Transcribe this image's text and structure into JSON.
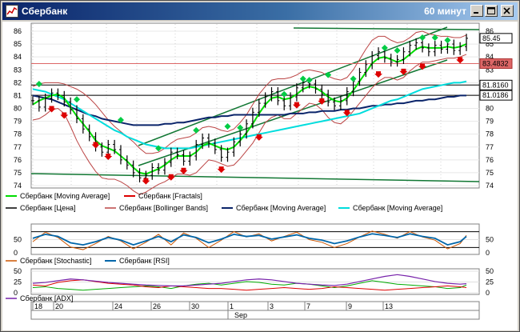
{
  "window": {
    "title": "Сбербанк",
    "period": "60 минут"
  },
  "colors": {
    "up_fractal": "#00cc44",
    "down_fractal": "#dd0000",
    "ma_fast": "#00dd00",
    "ma_slow": "#0a246a",
    "ma_mid": "#00dddd",
    "bollinger": "#bb4444",
    "price": "#000000",
    "channel": "#117733",
    "stochastic": "#cc5500",
    "rsi": "#0066aa",
    "adx": "#7722aa"
  },
  "chart_data": [
    {
      "type": "line",
      "name": "price",
      "ylim": [
        74,
        86
      ],
      "yticks": [
        74,
        75,
        76,
        77,
        78,
        79,
        80,
        81,
        82,
        83,
        84,
        85,
        86
      ],
      "x": [
        0,
        2,
        4,
        6,
        8,
        10,
        12,
        14,
        16,
        18,
        20,
        22,
        24,
        26,
        28,
        30,
        32,
        34,
        36,
        38,
        40,
        42,
        44,
        46,
        48,
        50,
        52,
        54,
        56,
        58,
        60,
        62,
        64,
        66,
        68,
        70,
        72,
        74,
        76,
        78,
        80,
        82,
        84,
        86,
        88,
        90,
        92,
        94,
        96,
        98,
        100,
        102,
        104,
        106,
        108,
        110,
        112,
        114,
        116,
        118,
        120,
        122,
        124,
        126,
        128,
        130,
        132,
        134,
        136,
        138
      ],
      "close": [
        80.6,
        80.1,
        80.8,
        81.2,
        81.0,
        80.5,
        79.9,
        79.2,
        78.4,
        77.8,
        77.0,
        76.6,
        77.2,
        76.8,
        76.0,
        75.6,
        75.0,
        74.6,
        74.8,
        75.4,
        75.2,
        75.8,
        76.6,
        76.4,
        75.9,
        76.3,
        77.2,
        77.7,
        77.3,
        76.8,
        76.2,
        76.6,
        77.4,
        78.0,
        78.8,
        79.7,
        80.4,
        80.9,
        81.3,
        80.6,
        80.2,
        80.9,
        81.6,
        82.0,
        81.9,
        81.5,
        81.1,
        80.5,
        80.2,
        80.6,
        81.3,
        82.1,
        82.8,
        83.4,
        84.1,
        84.4,
        83.9,
        83.6,
        83.8,
        84.4,
        84.9,
        85.1,
        84.7,
        84.4,
        84.9,
        84.6,
        85.0,
        84.5,
        84.8,
        85.45
      ],
      "last_price": "85.45",
      "marker_1": "83.4832",
      "marker_2": "81.8160",
      "marker_3": "81.0186",
      "fractals_up": [
        [
          2,
          81.9
        ],
        [
          14,
          80.7
        ],
        [
          28,
          79.1
        ],
        [
          40,
          76.9
        ],
        [
          52,
          78.3
        ],
        [
          62,
          78.6
        ],
        [
          66,
          78.5
        ],
        [
          80,
          81.1
        ],
        [
          86,
          82.3
        ],
        [
          88,
          82.2
        ],
        [
          94,
          82.6
        ],
        [
          102,
          82.3
        ],
        [
          112,
          84.7
        ],
        [
          116,
          84.5
        ],
        [
          124,
          85.5
        ],
        [
          128,
          85.5
        ],
        [
          132,
          85.3
        ]
      ],
      "fractals_down": [
        [
          6,
          80.0
        ],
        [
          10,
          79.5
        ],
        [
          20,
          77.2
        ],
        [
          24,
          76.3
        ],
        [
          36,
          74.4
        ],
        [
          44,
          74.7
        ],
        [
          48,
          75.2
        ],
        [
          60,
          75.3
        ],
        [
          72,
          77.8
        ],
        [
          84,
          80.3
        ],
        [
          92,
          80.6
        ],
        [
          100,
          79.7
        ],
        [
          110,
          82.7
        ],
        [
          118,
          82.9
        ],
        [
          124,
          83.3
        ],
        [
          136,
          83.8
        ]
      ],
      "ma_fast": [
        80.3,
        80.6,
        80.8,
        81.0,
        81.1,
        80.8,
        80.1,
        79.4,
        78.8,
        78.2,
        77.5,
        77.1,
        76.9,
        76.7,
        76.3,
        75.9,
        75.4,
        75.0,
        74.9,
        75.1,
        75.3,
        75.6,
        76.0,
        76.3,
        76.3,
        76.3,
        76.6,
        77.1,
        77.3,
        77.1,
        76.9,
        76.8,
        77.0,
        77.5,
        78.1,
        78.8,
        79.6,
        80.3,
        80.8,
        80.9,
        80.7,
        80.8,
        81.1,
        81.5,
        81.7,
        81.6,
        81.3,
        80.9,
        80.6,
        80.5,
        80.8,
        81.4,
        82.1,
        82.8,
        83.5,
        83.9,
        84.0,
        83.8,
        83.6,
        83.8,
        84.2,
        84.6,
        84.8,
        84.7,
        84.7,
        84.7,
        84.8,
        84.7,
        84.8,
        85.0
      ],
      "ma_mid": [
        81.5,
        81.4,
        81.3,
        81.1,
        80.9,
        80.7,
        80.4,
        80.1,
        79.8,
        79.5,
        79.2,
        78.9,
        78.6,
        78.3,
        78.1,
        77.8,
        77.6,
        77.4,
        77.2,
        77.1,
        77.0,
        76.9,
        76.9,
        76.9,
        76.9,
        76.9,
        77.0,
        77.1,
        77.2,
        77.3,
        77.4,
        77.5,
        77.6,
        77.7,
        77.8,
        77.9,
        78.0,
        78.1,
        78.2,
        78.3,
        78.4,
        78.5,
        78.6,
        78.7,
        78.8,
        78.9,
        79.0,
        79.1,
        79.2,
        79.3,
        79.4,
        79.5,
        79.6,
        79.8,
        80.0,
        80.2,
        80.4,
        80.6,
        80.7,
        80.9,
        81.1,
        81.3,
        81.5,
        81.6,
        81.7,
        81.8,
        81.9,
        82.0,
        82.0,
        82.1
      ],
      "ma_slow": [
        81.0,
        80.9,
        80.8,
        80.7,
        80.5,
        80.3,
        80.1,
        79.9,
        79.7,
        79.5,
        79.4,
        79.2,
        79.1,
        79.0,
        78.9,
        78.8,
        78.7,
        78.7,
        78.7,
        78.7,
        78.7,
        78.8,
        78.8,
        78.9,
        78.9,
        79.0,
        79.1,
        79.2,
        79.3,
        79.3,
        79.4,
        79.4,
        79.5,
        79.5,
        79.5,
        79.5,
        79.5,
        79.5,
        79.5,
        79.5,
        79.5,
        79.6,
        79.6,
        79.6,
        79.7,
        79.7,
        79.8,
        79.8,
        79.8,
        79.9,
        79.9,
        80.0,
        80.0,
        80.1,
        80.2,
        80.2,
        80.3,
        80.3,
        80.4,
        80.4,
        80.5,
        80.6,
        80.6,
        80.7,
        80.7,
        80.8,
        80.9,
        80.9,
        81.0,
        81.0
      ],
      "boll_upper": [
        81.7,
        81.9,
        82.0,
        82.0,
        82.0,
        81.9,
        81.7,
        81.5,
        81.2,
        80.8,
        80.3,
        79.7,
        79.1,
        78.6,
        78.2,
        77.8,
        77.4,
        76.9,
        76.5,
        76.5,
        76.6,
        76.9,
        77.3,
        77.6,
        77.7,
        77.8,
        78.1,
        78.5,
        78.6,
        78.5,
        78.3,
        78.2,
        78.4,
        78.9,
        79.5,
        80.3,
        81.1,
        81.7,
        82.2,
        82.3,
        82.3,
        82.4,
        82.6,
        82.9,
        83.0,
        82.9,
        82.8,
        82.5,
        82.3,
        82.2,
        82.4,
        83.0,
        83.8,
        84.6,
        85.3,
        85.6,
        85.6,
        85.3,
        85.1,
        85.2,
        85.5,
        85.9,
        86.0,
        85.8,
        85.7,
        85.6,
        85.6,
        85.5,
        85.5,
        85.7
      ],
      "boll_lower": [
        79.1,
        79.2,
        79.5,
        79.9,
        80.0,
        79.6,
        78.6,
        77.5,
        76.6,
        75.8,
        75.1,
        74.6,
        74.5,
        74.5,
        74.3,
        74.0,
        73.6,
        73.3,
        73.5,
        73.8,
        74.1,
        74.3,
        74.6,
        74.9,
        74.9,
        74.8,
        75.0,
        75.5,
        76.0,
        75.9,
        75.7,
        75.5,
        75.6,
        76.1,
        76.7,
        77.3,
        78.1,
        78.9,
        79.3,
        79.5,
        79.2,
        79.2,
        79.6,
        80.0,
        80.4,
        80.3,
        79.9,
        79.3,
        78.9,
        78.8,
        79.2,
        79.8,
        80.4,
        81.0,
        81.6,
        82.1,
        82.4,
        82.4,
        82.2,
        82.4,
        82.9,
        83.3,
        83.6,
        83.6,
        83.7,
        83.8,
        83.9,
        83.9,
        84.0,
        84.2
      ]
    },
    {
      "type": "line",
      "name": "oscillators",
      "ylim": [
        0,
        100
      ],
      "yticks": [
        0,
        50
      ],
      "x": [
        0,
        4,
        8,
        12,
        16,
        20,
        24,
        28,
        32,
        36,
        40,
        44,
        48,
        52,
        56,
        60,
        64,
        68,
        72,
        76,
        80,
        84,
        88,
        92,
        96,
        100,
        104,
        108,
        112,
        116,
        120,
        124,
        128,
        132,
        136,
        138
      ],
      "stochastic": [
        42,
        78,
        58,
        22,
        12,
        35,
        62,
        45,
        15,
        40,
        70,
        30,
        75,
        55,
        20,
        48,
        80,
        60,
        72,
        45,
        62,
        78,
        50,
        40,
        20,
        35,
        60,
        82,
        70,
        55,
        80,
        60,
        48,
        15,
        35,
        66
      ],
      "rsi": [
        55,
        70,
        62,
        38,
        30,
        42,
        58,
        48,
        30,
        45,
        62,
        42,
        68,
        58,
        38,
        52,
        70,
        62,
        66,
        52,
        60,
        68,
        55,
        48,
        35,
        45,
        60,
        72,
        66,
        58,
        72,
        62,
        55,
        30,
        42,
        62
      ]
    },
    {
      "type": "line",
      "name": "adx",
      "ylim": [
        0,
        50
      ],
      "yticks": [
        0,
        25,
        50
      ],
      "x": [
        0,
        4,
        8,
        12,
        16,
        20,
        24,
        28,
        32,
        36,
        40,
        44,
        48,
        52,
        56,
        60,
        64,
        68,
        72,
        76,
        80,
        84,
        88,
        92,
        96,
        100,
        104,
        108,
        112,
        116,
        120,
        124,
        128,
        132,
        136,
        138
      ],
      "adx": [
        22,
        24,
        28,
        32,
        30,
        27,
        24,
        22,
        20,
        18,
        17,
        16,
        16,
        18,
        20,
        22,
        26,
        30,
        32,
        30,
        26,
        22,
        20,
        18,
        17,
        20,
        26,
        32,
        38,
        42,
        38,
        32,
        26,
        22,
        20,
        21
      ],
      "di_plus": [
        12,
        14,
        10,
        8,
        6,
        8,
        10,
        12,
        14,
        16,
        14,
        10,
        16,
        20,
        22,
        18,
        22,
        26,
        24,
        20,
        18,
        22,
        20,
        16,
        12,
        16,
        22,
        28,
        24,
        20,
        18,
        16,
        14,
        10,
        12,
        18
      ],
      "di_minus": [
        18,
        16,
        24,
        28,
        30,
        26,
        22,
        20,
        18,
        14,
        12,
        16,
        14,
        12,
        10,
        10,
        8,
        6,
        8,
        10,
        12,
        10,
        8,
        10,
        14,
        12,
        10,
        8,
        6,
        8,
        10,
        12,
        14,
        16,
        14,
        12
      ]
    }
  ],
  "legend": {
    "row1": [
      "Сбербанк [Moving Average]",
      "Сбербанк [Fractals]"
    ],
    "row2": [
      "Сбербанк [Цена]",
      "Сбербанк [Bollinger Bands]",
      "Сбербанк [Moving Average]",
      "Сбербанк [Moving Average]"
    ],
    "row3": [
      "Сбербанк [Stochastic]",
      "Сбербанк [RSI]"
    ],
    "row4": [
      "Сбербанк [ADX]"
    ]
  },
  "xaxis": {
    "labels": [
      "18",
      "20",
      "24",
      "26",
      "30",
      "1",
      "3",
      "7",
      "9",
      "13"
    ],
    "month": "Sep"
  }
}
